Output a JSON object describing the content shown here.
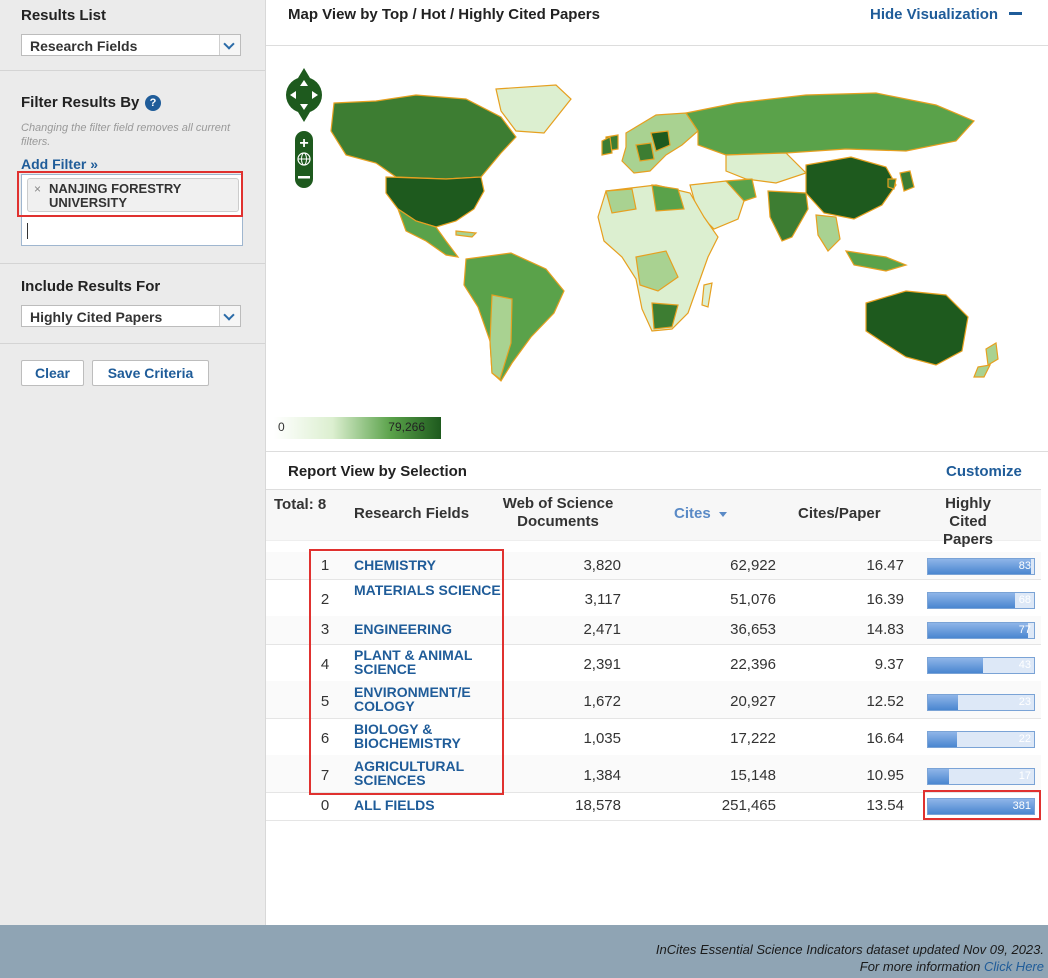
{
  "sidebar": {
    "results_list_title": "Results List",
    "results_list_value": "Research Fields",
    "filter_title": "Filter Results By",
    "help_glyph": "?",
    "filter_note": "Changing the filter field removes all current filters.",
    "add_filter": "Add Filter »",
    "filter_tag": "NANJING FORESTRY UNIVERSITY",
    "filter_tag_remove": "×",
    "include_title": "Include Results For",
    "include_value": "Highly Cited Papers",
    "clear_label": "Clear",
    "save_label": "Save Criteria"
  },
  "map": {
    "title": "Map View by Top / Hot / Highly Cited Papers",
    "hide_label": "Hide Visualization",
    "hide_icon": "minus-icon",
    "legend_min": "0",
    "legend_max": "79,266",
    "colors": {
      "darkest": "#1e5a1e",
      "dark": "#3d7d32",
      "mid": "#5aa24a",
      "light": "#a9d291",
      "lightest": "#dcefd0",
      "border": "#e6a020"
    }
  },
  "report": {
    "title": "Report View by Selection",
    "customize_label": "Customize",
    "total_label": "Total: 8",
    "columns": {
      "field": "Research Fields",
      "docs": "Web of Science Documents",
      "cites": "Cites",
      "cites_per_paper": "Cites/Paper",
      "hcp": "Highly Cited Papers"
    },
    "rows": [
      {
        "rank": "1",
        "field": "CHEMISTRY",
        "docs": "3,820",
        "cites": "62,922",
        "cpp": "16.47",
        "hcp": "83"
      },
      {
        "rank": "2",
        "field": "MATERIALS SCIENCE",
        "docs": "3,117",
        "cites": "51,076",
        "cpp": "16.39",
        "hcp": "68"
      },
      {
        "rank": "3",
        "field": "ENGINEERING",
        "docs": "2,471",
        "cites": "36,653",
        "cpp": "14.83",
        "hcp": "77"
      },
      {
        "rank": "4",
        "field": "PLANT & ANIMAL SCIENCE",
        "docs": "2,391",
        "cites": "22,396",
        "cpp": "9.37",
        "hcp": "43"
      },
      {
        "rank": "5",
        "field": "ENVIRONMENT/E COLOGY",
        "docs": "1,672",
        "cites": "20,927",
        "cpp": "12.52",
        "hcp": "23"
      },
      {
        "rank": "6",
        "field": "BIOLOGY & BIOCHEMISTRY",
        "docs": "1,035",
        "cites": "17,222",
        "cpp": "16.64",
        "hcp": "22"
      },
      {
        "rank": "7",
        "field": "AGRICULTURAL SCIENCES",
        "docs": "1,384",
        "cites": "15,148",
        "cpp": "10.95",
        "hcp": "17"
      },
      {
        "rank": "0",
        "field": "ALL FIELDS",
        "docs": "18,578",
        "cites": "251,465",
        "cpp": "13.54",
        "hcp": "381"
      }
    ],
    "hcp_bar_fraction": [
      0.97,
      0.82,
      0.94,
      0.52,
      0.28,
      0.27,
      0.2,
      1.0
    ]
  },
  "footer": {
    "line1": "InCites Essential Science Indicators dataset updated Nov 09, 2023.",
    "line2_text": "For more information ",
    "line2_link": "Click Here"
  }
}
